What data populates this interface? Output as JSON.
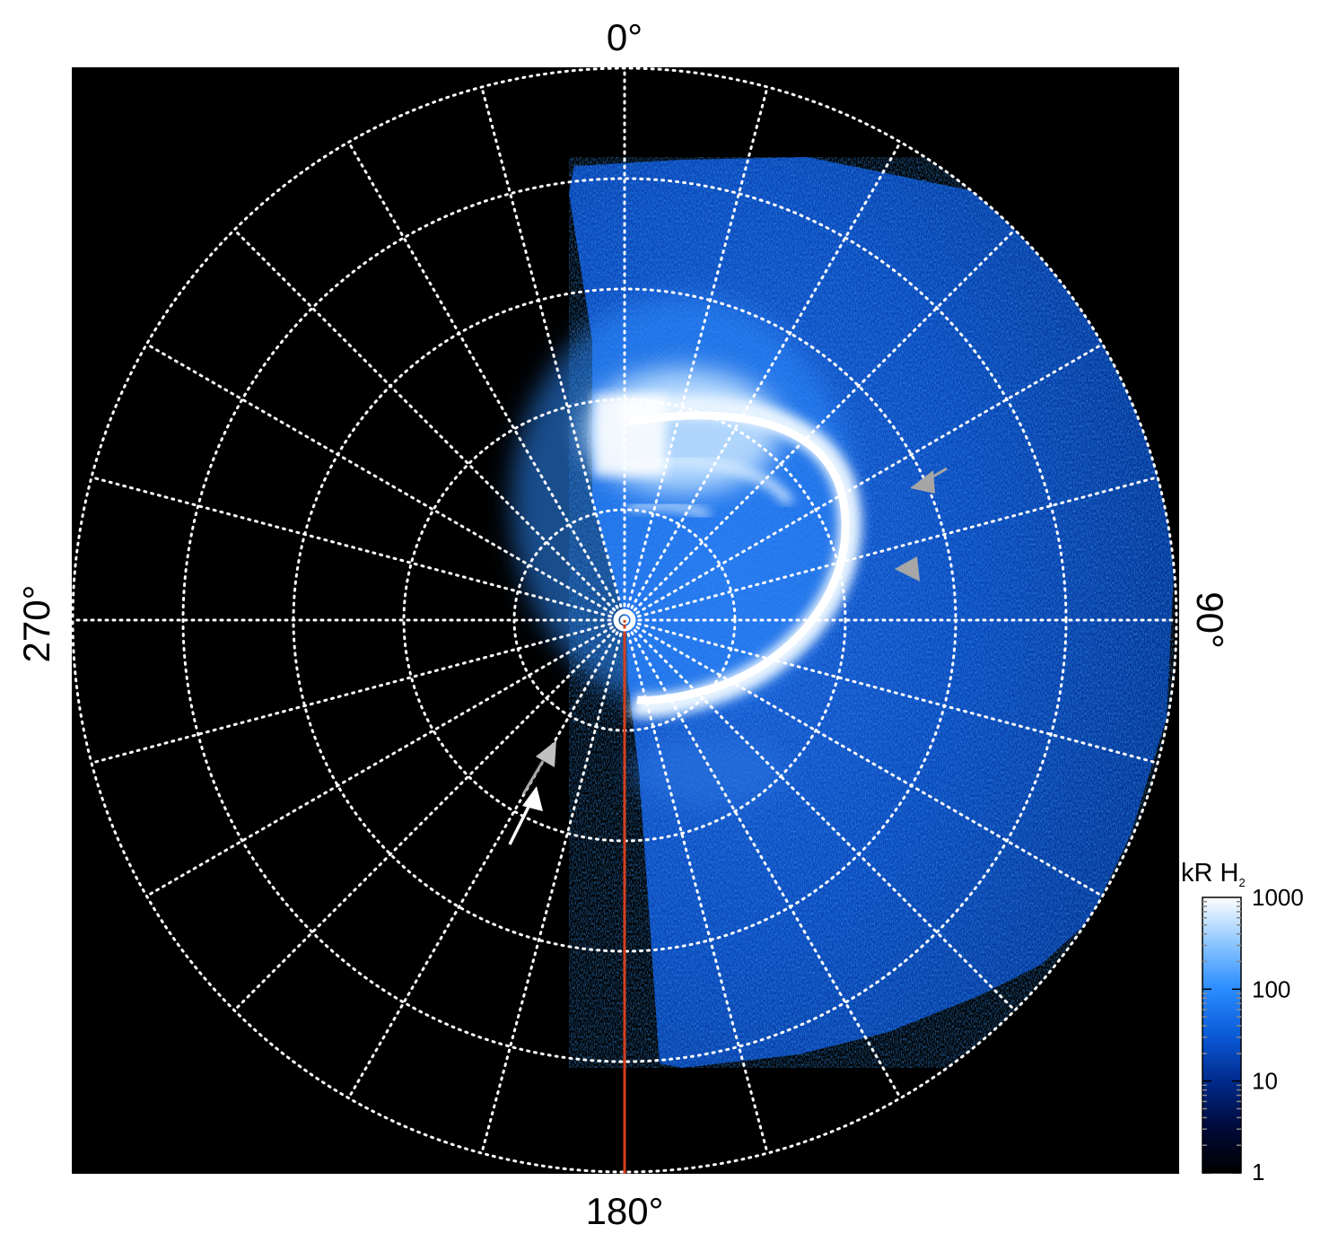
{
  "chart_data": {
    "type": "heatmap",
    "projection": "polar",
    "background_color": "#000000",
    "grid": true,
    "grid_style": "white dotted",
    "angular_labels": [
      {
        "angle": 0,
        "text": "0°"
      },
      {
        "angle": 90,
        "text": "90°"
      },
      {
        "angle": 180,
        "text": "180°"
      },
      {
        "angle": 270,
        "text": "270°"
      }
    ],
    "angular_step_deg": 15,
    "radial_rings": 5,
    "reference_line": {
      "angle": 180,
      "color": "#d2401f"
    },
    "colorbar": {
      "title_main": "kR H",
      "title_sub": "2",
      "scale": "log",
      "range": [
        1,
        1000
      ],
      "tick_labels": [
        "1000",
        "100",
        "10",
        "1"
      ],
      "tick_values": [
        1000,
        100,
        10,
        1
      ],
      "colormap": [
        "#000000",
        "#000a3a",
        "#002a8c",
        "#0a5ad8",
        "#2a8cff",
        "#8cc6ff",
        "#ffffff"
      ],
      "placement": "bottom-right"
    },
    "features": [
      {
        "name": "main auroral oval",
        "brightness_kR": 1000
      },
      {
        "name": "noon-side emission",
        "brightness_kR": 1000
      },
      {
        "name": "dusk-side diffuse emission",
        "brightness_kR": 30
      }
    ],
    "annotations": [
      {
        "type": "arrow",
        "color": "#a6a6a6"
      },
      {
        "type": "arrow",
        "color": "#a6a6a6"
      },
      {
        "type": "arrow",
        "color": "#a6a6a6"
      },
      {
        "type": "arrow",
        "color": "#ffffff"
      }
    ]
  }
}
